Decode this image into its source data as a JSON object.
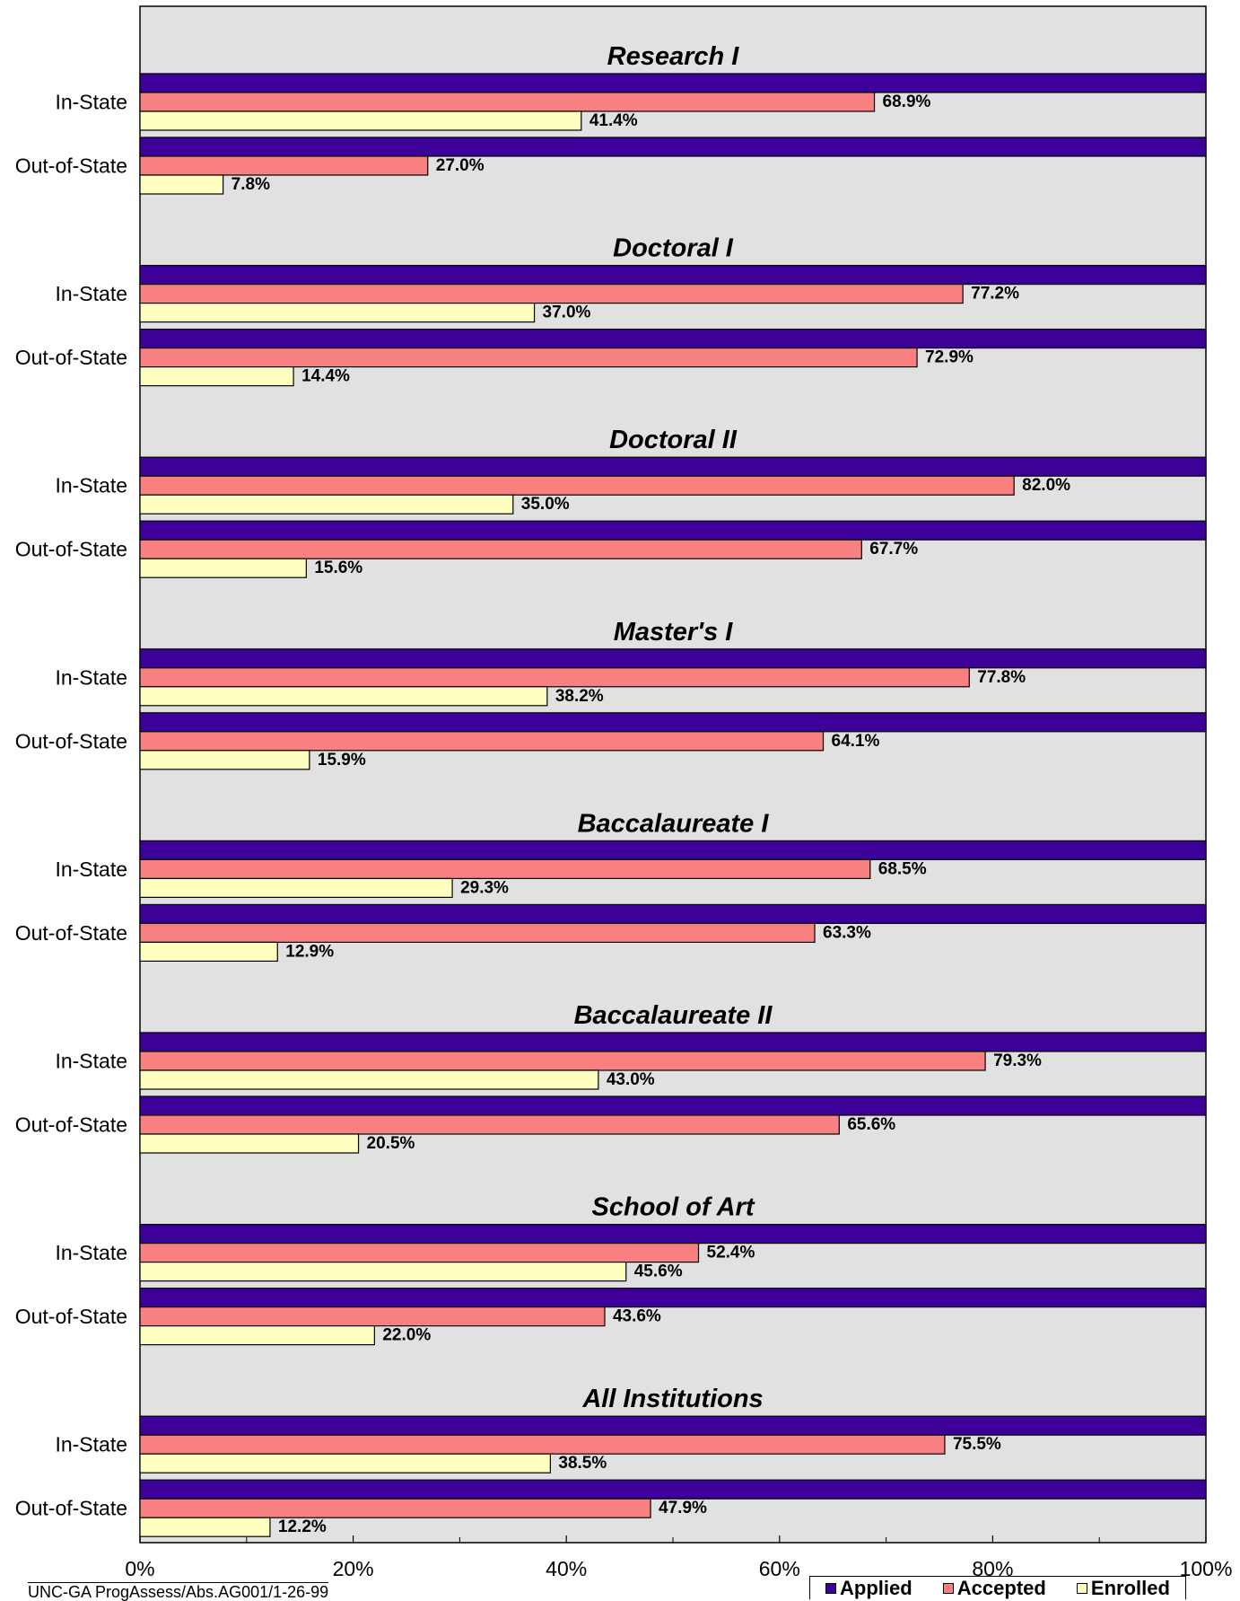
{
  "chart_data": {
    "type": "bar",
    "orientation": "horizontal",
    "colors": {
      "Applied": "#3D0099",
      "Accepted": "#F98080",
      "Enrolled": "#FFFFC0",
      "plot_background": "#E1E1E1"
    },
    "xlim": [
      0,
      100
    ],
    "x_ticks": [
      "0%",
      "20%",
      "40%",
      "60%",
      "80%",
      "100%"
    ],
    "grid": false,
    "legend_position": "bottom-right",
    "legend": [
      "Applied",
      "Accepted",
      "Enrolled"
    ],
    "series_names": [
      "Applied",
      "Accepted",
      "Enrolled"
    ],
    "groups": [
      {
        "title": "Research I",
        "rows": [
          {
            "label": "In-State",
            "values": [
              100,
              68.9,
              41.4
            ],
            "labels": [
              "",
              "68.9%",
              "41.4%"
            ]
          },
          {
            "label": "Out-of-State",
            "values": [
              100,
              27.0,
              7.8
            ],
            "labels": [
              "",
              "27.0%",
              "7.8%"
            ]
          }
        ]
      },
      {
        "title": "Doctoral I",
        "rows": [
          {
            "label": "In-State",
            "values": [
              100,
              77.2,
              37.0
            ],
            "labels": [
              "",
              "77.2%",
              "37.0%"
            ]
          },
          {
            "label": "Out-of-State",
            "values": [
              100,
              72.9,
              14.4
            ],
            "labels": [
              "",
              "72.9%",
              "14.4%"
            ]
          }
        ]
      },
      {
        "title": "Doctoral II",
        "rows": [
          {
            "label": "In-State",
            "values": [
              100,
              82.0,
              35.0
            ],
            "labels": [
              "",
              "82.0%",
              "35.0%"
            ]
          },
          {
            "label": "Out-of-State",
            "values": [
              100,
              67.7,
              15.6
            ],
            "labels": [
              "",
              "67.7%",
              "15.6%"
            ]
          }
        ]
      },
      {
        "title": "Master's I",
        "rows": [
          {
            "label": "In-State",
            "values": [
              100,
              77.8,
              38.2
            ],
            "labels": [
              "",
              "77.8%",
              "38.2%"
            ]
          },
          {
            "label": "Out-of-State",
            "values": [
              100,
              64.1,
              15.9
            ],
            "labels": [
              "",
              "64.1%",
              "15.9%"
            ]
          }
        ]
      },
      {
        "title": "Baccalaureate I",
        "rows": [
          {
            "label": "In-State",
            "values": [
              100,
              68.5,
              29.3
            ],
            "labels": [
              "",
              "68.5%",
              "29.3%"
            ]
          },
          {
            "label": "Out-of-State",
            "values": [
              100,
              63.3,
              12.9
            ],
            "labels": [
              "",
              "63.3%",
              "12.9%"
            ]
          }
        ]
      },
      {
        "title": "Baccalaureate II",
        "rows": [
          {
            "label": "In-State",
            "values": [
              100,
              79.3,
              43.0
            ],
            "labels": [
              "",
              "79.3%",
              "43.0%"
            ]
          },
          {
            "label": "Out-of-State",
            "values": [
              100,
              65.6,
              20.5
            ],
            "labels": [
              "",
              "65.6%",
              "20.5%"
            ]
          }
        ]
      },
      {
        "title": "School of Art",
        "rows": [
          {
            "label": "In-State",
            "values": [
              100,
              52.4,
              45.6
            ],
            "labels": [
              "",
              "52.4%",
              "45.6%"
            ]
          },
          {
            "label": "Out-of-State",
            "values": [
              100,
              43.6,
              22.0
            ],
            "labels": [
              "",
              "43.6%",
              "22.0%"
            ]
          }
        ]
      },
      {
        "title": "All Institutions",
        "rows": [
          {
            "label": "In-State",
            "values": [
              100,
              75.5,
              38.5
            ],
            "labels": [
              "",
              "75.5%",
              "38.5%"
            ]
          },
          {
            "label": "Out-of-State",
            "values": [
              100,
              47.9,
              12.2
            ],
            "labels": [
              "",
              "47.9%",
              "12.2%"
            ]
          }
        ]
      }
    ]
  },
  "footnote": "UNC-GA ProgAssess/Abs.AG001/1-26-99"
}
